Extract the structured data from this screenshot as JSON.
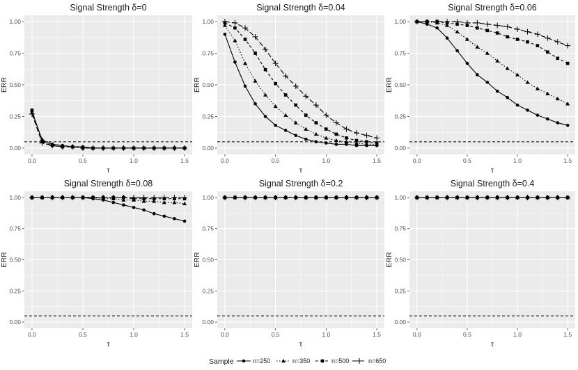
{
  "chart_data": {
    "type": "line",
    "x": [
      0,
      0.1,
      0.2,
      0.3,
      0.4,
      0.5,
      0.6,
      0.7,
      0.8,
      0.9,
      1.0,
      1.1,
      1.2,
      1.3,
      1.4,
      1.5
    ],
    "xlabel": "τ",
    "ylabel": "ERR",
    "xlim": [
      0,
      1.5
    ],
    "ylim": [
      0,
      1
    ],
    "xticks": [
      "0.0",
      "0.5",
      "1.0",
      "1.5"
    ],
    "yticks": [
      "0.00",
      "0.25",
      "0.50",
      "0.75",
      "1.00"
    ],
    "reference_line": {
      "y": 0.05,
      "style": "dashed"
    },
    "grid": true,
    "legend": {
      "title": "Sample",
      "position": "bottom",
      "entries": [
        "n=250",
        "n=350",
        "n=500",
        "n=650"
      ]
    },
    "panels": [
      {
        "title": "Signal Strength δ=0",
        "series": [
          {
            "name": "n=250",
            "values": [
              0.29,
              0.06,
              0.03,
              0.02,
              0.01,
              0.01,
              0.0,
              0.0,
              0.0,
              0.0,
              0.0,
              0.0,
              0.0,
              0.0,
              0.0,
              0.0
            ]
          },
          {
            "name": "n=350",
            "values": [
              0.28,
              0.07,
              0.03,
              0.02,
              0.01,
              0.01,
              0.0,
              0.0,
              0.0,
              0.0,
              0.0,
              0.0,
              0.0,
              0.0,
              0.0,
              0.0
            ]
          },
          {
            "name": "n=500",
            "values": [
              0.3,
              0.05,
              0.02,
              0.01,
              0.01,
              0.0,
              0.0,
              0.0,
              0.0,
              0.0,
              0.0,
              0.0,
              0.0,
              0.0,
              0.0,
              0.0
            ]
          },
          {
            "name": "n=650",
            "values": [
              0.27,
              0.04,
              0.02,
              0.01,
              0.01,
              0.0,
              0.0,
              0.0,
              0.0,
              0.0,
              0.0,
              0.0,
              0.0,
              0.0,
              0.0,
              0.0
            ]
          }
        ]
      },
      {
        "title": "Signal Strength δ=0.04",
        "series": [
          {
            "name": "n=250",
            "values": [
              0.9,
              0.68,
              0.49,
              0.35,
              0.25,
              0.18,
              0.14,
              0.1,
              0.07,
              0.05,
              0.04,
              0.03,
              0.03,
              0.02,
              0.02,
              0.02
            ]
          },
          {
            "name": "n=350",
            "values": [
              0.97,
              0.85,
              0.67,
              0.53,
              0.42,
              0.33,
              0.26,
              0.2,
              0.15,
              0.11,
              0.08,
              0.06,
              0.05,
              0.04,
              0.03,
              0.03
            ]
          },
          {
            "name": "n=500",
            "values": [
              0.99,
              0.95,
              0.86,
              0.75,
              0.62,
              0.51,
              0.42,
              0.34,
              0.26,
              0.2,
              0.15,
              0.11,
              0.08,
              0.06,
              0.05,
              0.04
            ]
          },
          {
            "name": "n=650",
            "values": [
              1.0,
              0.99,
              0.95,
              0.88,
              0.78,
              0.67,
              0.57,
              0.49,
              0.41,
              0.34,
              0.26,
              0.2,
              0.15,
              0.12,
              0.1,
              0.08
            ]
          }
        ]
      },
      {
        "title": "Signal Strength δ=0.06",
        "series": [
          {
            "name": "n=250",
            "values": [
              1.0,
              0.98,
              0.95,
              0.87,
              0.77,
              0.67,
              0.58,
              0.52,
              0.45,
              0.4,
              0.34,
              0.3,
              0.26,
              0.23,
              0.2,
              0.18
            ]
          },
          {
            "name": "n=350",
            "values": [
              1.0,
              1.0,
              0.99,
              0.97,
              0.92,
              0.86,
              0.8,
              0.75,
              0.69,
              0.63,
              0.58,
              0.52,
              0.47,
              0.43,
              0.39,
              0.35
            ]
          },
          {
            "name": "n=500",
            "values": [
              1.0,
              1.0,
              1.0,
              0.99,
              0.98,
              0.97,
              0.95,
              0.93,
              0.91,
              0.88,
              0.86,
              0.84,
              0.81,
              0.76,
              0.71,
              0.67
            ]
          },
          {
            "name": "n=650",
            "values": [
              1.0,
              1.0,
              1.0,
              1.0,
              1.0,
              0.99,
              0.99,
              0.98,
              0.97,
              0.96,
              0.94,
              0.92,
              0.9,
              0.87,
              0.84,
              0.81
            ]
          }
        ]
      },
      {
        "title": "Signal Strength δ=0.08",
        "series": [
          {
            "name": "n=250",
            "values": [
              1.0,
              1.0,
              1.0,
              1.0,
              1.0,
              1.0,
              0.99,
              0.98,
              0.96,
              0.94,
              0.92,
              0.9,
              0.87,
              0.85,
              0.83,
              0.81
            ]
          },
          {
            "name": "n=350",
            "values": [
              1.0,
              1.0,
              1.0,
              1.0,
              1.0,
              1.0,
              1.0,
              0.99,
              0.99,
              0.98,
              0.98,
              0.97,
              0.97,
              0.96,
              0.96,
              0.95
            ]
          },
          {
            "name": "n=500",
            "values": [
              1.0,
              1.0,
              1.0,
              1.0,
              1.0,
              1.0,
              1.0,
              1.0,
              1.0,
              1.0,
              0.99,
              0.99,
              0.99,
              0.99,
              0.99,
              0.99
            ]
          },
          {
            "name": "n=650",
            "values": [
              1.0,
              1.0,
              1.0,
              1.0,
              1.0,
              1.0,
              1.0,
              1.0,
              1.0,
              1.0,
              1.0,
              1.0,
              1.0,
              1.0,
              1.0,
              1.0
            ]
          }
        ]
      },
      {
        "title": "Signal Strength δ=0.2",
        "series": [
          {
            "name": "n=250",
            "values": [
              1.0,
              1.0,
              1.0,
              1.0,
              1.0,
              1.0,
              1.0,
              1.0,
              1.0,
              1.0,
              1.0,
              1.0,
              1.0,
              1.0,
              1.0,
              1.0
            ]
          },
          {
            "name": "n=350",
            "values": [
              1.0,
              1.0,
              1.0,
              1.0,
              1.0,
              1.0,
              1.0,
              1.0,
              1.0,
              1.0,
              1.0,
              1.0,
              1.0,
              1.0,
              1.0,
              1.0
            ]
          },
          {
            "name": "n=500",
            "values": [
              1.0,
              1.0,
              1.0,
              1.0,
              1.0,
              1.0,
              1.0,
              1.0,
              1.0,
              1.0,
              1.0,
              1.0,
              1.0,
              1.0,
              1.0,
              1.0
            ]
          },
          {
            "name": "n=650",
            "values": [
              1.0,
              1.0,
              1.0,
              1.0,
              1.0,
              1.0,
              1.0,
              1.0,
              1.0,
              1.0,
              1.0,
              1.0,
              1.0,
              1.0,
              1.0,
              1.0
            ]
          }
        ]
      },
      {
        "title": "Signal Strength δ=0.4",
        "series": [
          {
            "name": "n=250",
            "values": [
              1.0,
              1.0,
              1.0,
              1.0,
              1.0,
              1.0,
              1.0,
              1.0,
              1.0,
              1.0,
              1.0,
              1.0,
              1.0,
              1.0,
              1.0,
              1.0
            ]
          },
          {
            "name": "n=350",
            "values": [
              1.0,
              1.0,
              1.0,
              1.0,
              1.0,
              1.0,
              1.0,
              1.0,
              1.0,
              1.0,
              1.0,
              1.0,
              1.0,
              1.0,
              1.0,
              1.0
            ]
          },
          {
            "name": "n=500",
            "values": [
              1.0,
              1.0,
              1.0,
              1.0,
              1.0,
              1.0,
              1.0,
              1.0,
              1.0,
              1.0,
              1.0,
              1.0,
              1.0,
              1.0,
              1.0,
              1.0
            ]
          },
          {
            "name": "n=650",
            "values": [
              1.0,
              1.0,
              1.0,
              1.0,
              1.0,
              1.0,
              1.0,
              1.0,
              1.0,
              1.0,
              1.0,
              1.0,
              1.0,
              1.0,
              1.0,
              1.0
            ]
          }
        ]
      }
    ],
    "colors": {
      "panel_bg": "#ebebeb",
      "grid": "#ffffff",
      "line": "#000000"
    },
    "series_styles": {
      "n=250": {
        "dash": "solid",
        "marker": "circle"
      },
      "n=350": {
        "dash": "dotted",
        "marker": "triangle"
      },
      "n=500": {
        "dash": "dashed",
        "marker": "square"
      },
      "n=650": {
        "dash": "longdash",
        "marker": "plus"
      }
    }
  }
}
